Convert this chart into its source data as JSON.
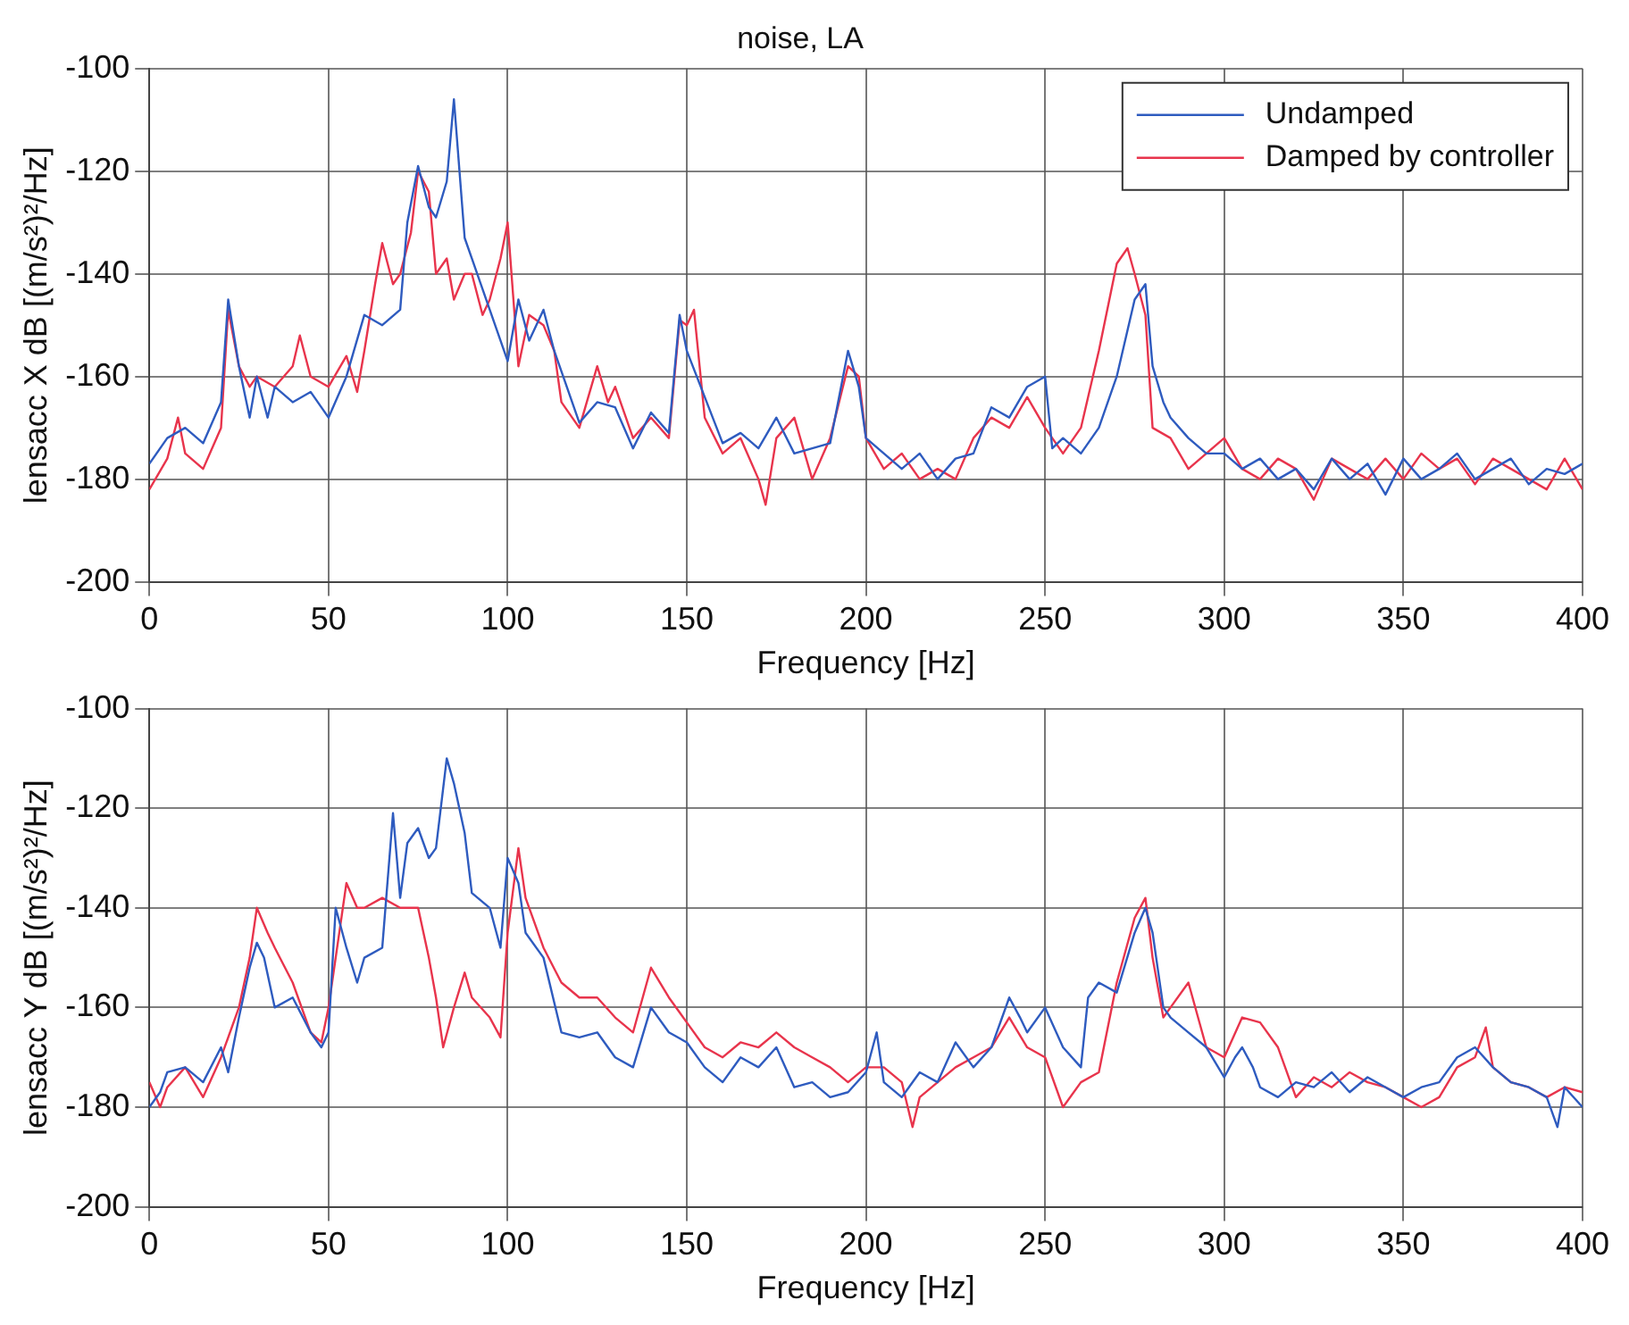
{
  "chart_data": [
    {
      "type": "line",
      "title": "noise, LA",
      "xlabel": "Frequency [Hz]",
      "ylabel": "lensacc X dB [(m/s²)²/Hz]",
      "xlim": [
        0,
        400
      ],
      "xticks": [
        0,
        50,
        100,
        150,
        200,
        250,
        300,
        350,
        400
      ],
      "ylim": [
        -200,
        -100
      ],
      "yticks": [
        -200,
        -180,
        -160,
        -140,
        -120,
        -100
      ],
      "grid": true,
      "legend": "top right",
      "marker": "none",
      "series": [
        {
          "name": "Undamped",
          "color": "#2e5bbf",
          "x": [
            0,
            5,
            10,
            15,
            20,
            22,
            25,
            28,
            30,
            33,
            35,
            40,
            45,
            50,
            55,
            60,
            65,
            70,
            72,
            75,
            78,
            80,
            83,
            85,
            88,
            90,
            95,
            100,
            103,
            106,
            110,
            113,
            115,
            120,
            125,
            130,
            135,
            140,
            145,
            148,
            150,
            155,
            160,
            165,
            170,
            175,
            180,
            185,
            190,
            195,
            198,
            200,
            205,
            210,
            215,
            220,
            225,
            230,
            235,
            240,
            245,
            250,
            252,
            255,
            260,
            265,
            270,
            275,
            278,
            280,
            283,
            285,
            290,
            295,
            300,
            305,
            310,
            315,
            320,
            325,
            330,
            335,
            340,
            345,
            350,
            355,
            360,
            365,
            370,
            375,
            380,
            385,
            390,
            395,
            400
          ],
          "values": [
            -177,
            -172,
            -170,
            -173,
            -165,
            -145,
            -158,
            -168,
            -160,
            -168,
            -162,
            -165,
            -163,
            -168,
            -160,
            -148,
            -150,
            -147,
            -130,
            -119,
            -127,
            -129,
            -122,
            -106,
            -133,
            -137,
            -147,
            -157,
            -145,
            -153,
            -147,
            -155,
            -159,
            -169,
            -165,
            -166,
            -174,
            -167,
            -171,
            -148,
            -155,
            -164,
            -173,
            -171,
            -174,
            -168,
            -175,
            -174,
            -173,
            -155,
            -162,
            -172,
            -175,
            -178,
            -175,
            -180,
            -176,
            -175,
            -166,
            -168,
            -162,
            -160,
            -174,
            -172,
            -175,
            -170,
            -160,
            -145,
            -142,
            -158,
            -165,
            -168,
            -172,
            -175,
            -175,
            -178,
            -176,
            -180,
            -178,
            -182,
            -176,
            -180,
            -177,
            -183,
            -176,
            -180,
            -178,
            -175,
            -180,
            -178,
            -176,
            -181,
            -178,
            -179,
            -177
          ]
        },
        {
          "name": "Damped by controller",
          "color": "#e8344c",
          "x": [
            0,
            5,
            8,
            10,
            15,
            20,
            22,
            25,
            28,
            30,
            35,
            40,
            42,
            45,
            50,
            55,
            58,
            60,
            63,
            65,
            68,
            70,
            73,
            75,
            78,
            80,
            83,
            85,
            88,
            90,
            93,
            95,
            98,
            100,
            103,
            106,
            110,
            113,
            115,
            120,
            125,
            128,
            130,
            135,
            140,
            145,
            148,
            150,
            152,
            155,
            160,
            165,
            170,
            172,
            175,
            180,
            185,
            190,
            195,
            198,
            200,
            205,
            210,
            215,
            220,
            225,
            230,
            235,
            240,
            245,
            250,
            255,
            260,
            265,
            270,
            273,
            275,
            278,
            280,
            285,
            290,
            295,
            300,
            305,
            310,
            315,
            320,
            325,
            330,
            335,
            340,
            345,
            350,
            355,
            360,
            365,
            370,
            375,
            380,
            385,
            390,
            395,
            400
          ],
          "values": [
            -182,
            -176,
            -168,
            -175,
            -178,
            -170,
            -147,
            -158,
            -162,
            -160,
            -162,
            -158,
            -152,
            -160,
            -162,
            -156,
            -163,
            -155,
            -142,
            -134,
            -142,
            -140,
            -132,
            -120,
            -124,
            -140,
            -137,
            -145,
            -140,
            -140,
            -148,
            -145,
            -137,
            -130,
            -158,
            -148,
            -150,
            -155,
            -165,
            -170,
            -158,
            -165,
            -162,
            -172,
            -168,
            -172,
            -149,
            -150,
            -147,
            -168,
            -175,
            -172,
            -180,
            -185,
            -172,
            -168,
            -180,
            -172,
            -158,
            -160,
            -172,
            -178,
            -175,
            -180,
            -178,
            -180,
            -172,
            -168,
            -170,
            -164,
            -170,
            -175,
            -170,
            -155,
            -138,
            -135,
            -140,
            -148,
            -170,
            -172,
            -178,
            -175,
            -172,
            -178,
            -180,
            -176,
            -178,
            -184,
            -176,
            -178,
            -180,
            -176,
            -180,
            -175,
            -178,
            -176,
            -181,
            -176,
            -178,
            -180,
            -182,
            -176,
            -182
          ]
        }
      ]
    },
    {
      "type": "line",
      "xlabel": "Frequency [Hz]",
      "ylabel": "lensacc Y dB [(m/s²)²/Hz]",
      "xlim": [
        0,
        400
      ],
      "xticks": [
        0,
        50,
        100,
        150,
        200,
        250,
        300,
        350,
        400
      ],
      "ylim": [
        -200,
        -100
      ],
      "yticks": [
        -200,
        -180,
        -160,
        -140,
        -120,
        -100
      ],
      "grid": true,
      "marker": "none",
      "series": [
        {
          "color": "#2e5bbf",
          "x": [
            0,
            3,
            5,
            10,
            15,
            20,
            22,
            25,
            28,
            30,
            32,
            35,
            40,
            45,
            48,
            50,
            52,
            55,
            58,
            60,
            65,
            68,
            70,
            72,
            75,
            78,
            80,
            83,
            85,
            88,
            90,
            95,
            98,
            100,
            103,
            105,
            110,
            115,
            120,
            125,
            130,
            135,
            140,
            145,
            150,
            155,
            160,
            165,
            170,
            175,
            180,
            185,
            190,
            195,
            200,
            203,
            205,
            210,
            215,
            220,
            225,
            230,
            235,
            240,
            243,
            245,
            250,
            255,
            260,
            262,
            265,
            270,
            275,
            278,
            280,
            283,
            285,
            290,
            295,
            300,
            303,
            305,
            308,
            310,
            315,
            320,
            325,
            330,
            335,
            340,
            345,
            350,
            355,
            360,
            365,
            370,
            375,
            380,
            385,
            390,
            393,
            395,
            400
          ],
          "values": [
            -180,
            -177,
            -173,
            -172,
            -175,
            -168,
            -173,
            -162,
            -152,
            -147,
            -150,
            -160,
            -158,
            -165,
            -168,
            -165,
            -140,
            -148,
            -155,
            -150,
            -148,
            -121,
            -138,
            -127,
            -124,
            -130,
            -128,
            -110,
            -115,
            -125,
            -137,
            -140,
            -148,
            -130,
            -135,
            -145,
            -150,
            -165,
            -166,
            -165,
            -170,
            -172,
            -160,
            -165,
            -167,
            -172,
            -175,
            -170,
            -172,
            -168,
            -176,
            -175,
            -178,
            -177,
            -173,
            -165,
            -175,
            -178,
            -173,
            -175,
            -167,
            -172,
            -168,
            -158,
            -162,
            -165,
            -160,
            -168,
            -172,
            -158,
            -155,
            -157,
            -145,
            -140,
            -145,
            -160,
            -162,
            -165,
            -168,
            -174,
            -170,
            -168,
            -172,
            -176,
            -178,
            -175,
            -176,
            -173,
            -177,
            -174,
            -176,
            -178,
            -176,
            -175,
            -170,
            -168,
            -172,
            -175,
            -176,
            -178,
            -184,
            -176,
            -180
          ]
        },
        {
          "color": "#e8344c",
          "x": [
            0,
            3,
            5,
            10,
            15,
            20,
            25,
            28,
            30,
            33,
            35,
            40,
            45,
            48,
            50,
            55,
            58,
            60,
            65,
            70,
            75,
            78,
            80,
            82,
            85,
            88,
            90,
            95,
            98,
            100,
            103,
            105,
            110,
            115,
            120,
            125,
            130,
            135,
            140,
            145,
            150,
            155,
            160,
            165,
            170,
            175,
            180,
            185,
            190,
            195,
            200,
            205,
            210,
            213,
            215,
            220,
            225,
            230,
            235,
            240,
            245,
            250,
            255,
            260,
            265,
            270,
            275,
            278,
            280,
            283,
            285,
            290,
            295,
            300,
            305,
            310,
            315,
            320,
            325,
            330,
            335,
            340,
            345,
            350,
            355,
            360,
            365,
            370,
            373,
            375,
            380,
            385,
            390,
            395,
            400
          ],
          "values": [
            -175,
            -180,
            -176,
            -172,
            -178,
            -170,
            -160,
            -150,
            -140,
            -145,
            -148,
            -155,
            -165,
            -167,
            -160,
            -135,
            -140,
            -140,
            -138,
            -140,
            -140,
            -150,
            -158,
            -168,
            -160,
            -153,
            -158,
            -162,
            -166,
            -145,
            -128,
            -138,
            -148,
            -155,
            -158,
            -158,
            -162,
            -165,
            -152,
            -158,
            -163,
            -168,
            -170,
            -167,
            -168,
            -165,
            -168,
            -170,
            -172,
            -175,
            -172,
            -172,
            -175,
            -184,
            -178,
            -175,
            -172,
            -170,
            -168,
            -162,
            -168,
            -170,
            -180,
            -175,
            -173,
            -155,
            -142,
            -138,
            -150,
            -162,
            -160,
            -155,
            -168,
            -170,
            -162,
            -163,
            -168,
            -178,
            -174,
            -176,
            -173,
            -175,
            -176,
            -178,
            -180,
            -178,
            -172,
            -170,
            -164,
            -172,
            -175,
            -176,
            -178,
            -176,
            -177
          ]
        }
      ]
    }
  ]
}
